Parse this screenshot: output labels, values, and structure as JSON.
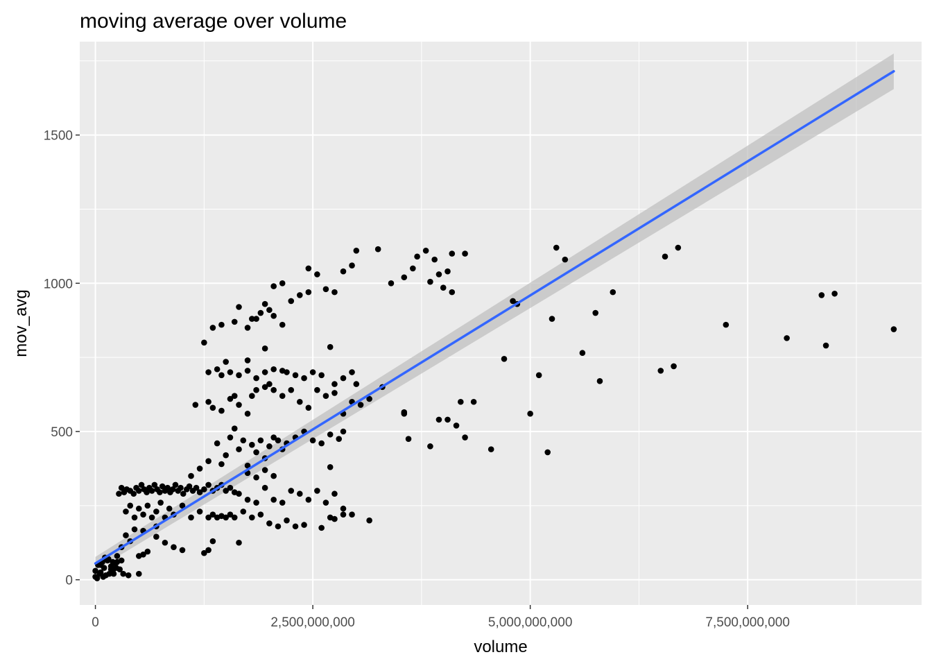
{
  "chart_data": {
    "type": "scatter",
    "title": "moving average over volume",
    "xlabel": "volume",
    "ylabel": "mov_avg",
    "xlim": [
      -180000000,
      9500000000
    ],
    "ylim": [
      -85,
      1815
    ],
    "x_ticks": [
      0,
      2500000000,
      5000000000,
      7500000000
    ],
    "x_tick_labels": [
      "0",
      "2,500,000,000",
      "5,000,000,000",
      "7,500,000,000"
    ],
    "y_ticks": [
      0,
      500,
      1000,
      1500
    ],
    "y_tick_labels": [
      "0",
      "500",
      "1000",
      "1500"
    ],
    "grid": true,
    "colors": {
      "panel": "#EBEBEB",
      "grid": "#FFFFFF",
      "points": "#000000",
      "fit_line": "#3366FF",
      "confidence_band": "#BEBEBE"
    },
    "points": [
      [
        0,
        10
      ],
      [
        0,
        30
      ],
      [
        50000000,
        20
      ],
      [
        100000000,
        40
      ],
      [
        20000000,
        5
      ],
      [
        80000000,
        60
      ],
      [
        60000000,
        25
      ],
      [
        120000000,
        15
      ],
      [
        30000000,
        50
      ],
      [
        150000000,
        70
      ],
      [
        180000000,
        45
      ],
      [
        200000000,
        30
      ],
      [
        230000000,
        55
      ],
      [
        250000000,
        80
      ],
      [
        280000000,
        35
      ],
      [
        300000000,
        65
      ],
      [
        160000000,
        20
      ],
      [
        110000000,
        75
      ],
      [
        90000000,
        10
      ],
      [
        210000000,
        20
      ],
      [
        270000000,
        290
      ],
      [
        300000000,
        310
      ],
      [
        330000000,
        295
      ],
      [
        360000000,
        305
      ],
      [
        400000000,
        300
      ],
      [
        440000000,
        290
      ],
      [
        470000000,
        310
      ],
      [
        500000000,
        300
      ],
      [
        530000000,
        320
      ],
      [
        560000000,
        305
      ],
      [
        590000000,
        295
      ],
      [
        620000000,
        310
      ],
      [
        650000000,
        300
      ],
      [
        680000000,
        320
      ],
      [
        710000000,
        305
      ],
      [
        740000000,
        295
      ],
      [
        770000000,
        315
      ],
      [
        800000000,
        300
      ],
      [
        830000000,
        310
      ],
      [
        860000000,
        295
      ],
      [
        890000000,
        305
      ],
      [
        920000000,
        320
      ],
      [
        950000000,
        300
      ],
      [
        980000000,
        310
      ],
      [
        1010000000,
        290
      ],
      [
        1050000000,
        305
      ],
      [
        1080000000,
        315
      ],
      [
        1120000000,
        300
      ],
      [
        1160000000,
        310
      ],
      [
        1200000000,
        295
      ],
      [
        1250000000,
        305
      ],
      [
        1300000000,
        320
      ],
      [
        1350000000,
        300
      ],
      [
        1400000000,
        310
      ],
      [
        1450000000,
        320
      ],
      [
        1500000000,
        300
      ],
      [
        1550000000,
        310
      ],
      [
        1600000000,
        295
      ],
      [
        350000000,
        230
      ],
      [
        400000000,
        250
      ],
      [
        450000000,
        210
      ],
      [
        500000000,
        240
      ],
      [
        550000000,
        220
      ],
      [
        600000000,
        250
      ],
      [
        650000000,
        210
      ],
      [
        700000000,
        230
      ],
      [
        750000000,
        260
      ],
      [
        800000000,
        210
      ],
      [
        850000000,
        240
      ],
      [
        900000000,
        220
      ],
      [
        1000000000,
        250
      ],
      [
        1100000000,
        210
      ],
      [
        1200000000,
        230
      ],
      [
        1300000000,
        210
      ],
      [
        1350000000,
        220
      ],
      [
        1400000000,
        210
      ],
      [
        1450000000,
        215
      ],
      [
        1500000000,
        210
      ],
      [
        1550000000,
        220
      ],
      [
        1600000000,
        210
      ],
      [
        1700000000,
        230
      ],
      [
        1800000000,
        210
      ],
      [
        1900000000,
        220
      ],
      [
        2000000000,
        190
      ],
      [
        2100000000,
        180
      ],
      [
        2200000000,
        200
      ],
      [
        2300000000,
        180
      ],
      [
        2400000000,
        185
      ],
      [
        2600000000,
        175
      ],
      [
        2700000000,
        210
      ],
      [
        2750000000,
        205
      ],
      [
        2850000000,
        220
      ],
      [
        3150000000,
        200
      ],
      [
        1650000000,
        125
      ],
      [
        1250000000,
        90
      ],
      [
        1300000000,
        100
      ],
      [
        1350000000,
        130
      ],
      [
        400000000,
        130
      ],
      [
        500000000,
        20
      ],
      [
        600000000,
        95
      ],
      [
        700000000,
        145
      ],
      [
        800000000,
        125
      ],
      [
        900000000,
        110
      ],
      [
        1000000000,
        100
      ],
      [
        500000000,
        80
      ],
      [
        550000000,
        85
      ],
      [
        200000000,
        60
      ],
      [
        300000000,
        110
      ],
      [
        350000000,
        150
      ],
      [
        450000000,
        170
      ],
      [
        550000000,
        165
      ],
      [
        700000000,
        180
      ],
      [
        1200000000,
        375
      ],
      [
        1300000000,
        400
      ],
      [
        1400000000,
        460
      ],
      [
        1450000000,
        390
      ],
      [
        1500000000,
        420
      ],
      [
        1550000000,
        480
      ],
      [
        1600000000,
        510
      ],
      [
        1650000000,
        440
      ],
      [
        1700000000,
        470
      ],
      [
        1750000000,
        385
      ],
      [
        1800000000,
        455
      ],
      [
        1850000000,
        430
      ],
      [
        1900000000,
        470
      ],
      [
        1950000000,
        410
      ],
      [
        2000000000,
        450
      ],
      [
        2050000000,
        480
      ],
      [
        2100000000,
        470
      ],
      [
        2150000000,
        440
      ],
      [
        2200000000,
        460
      ],
      [
        2300000000,
        480
      ],
      [
        2400000000,
        500
      ],
      [
        2500000000,
        470
      ],
      [
        2600000000,
        460
      ],
      [
        2700000000,
        490
      ],
      [
        2800000000,
        475
      ],
      [
        2850000000,
        500
      ],
      [
        2700000000,
        380
      ],
      [
        1750000000,
        360
      ],
      [
        1850000000,
        345
      ],
      [
        1950000000,
        370
      ],
      [
        2050000000,
        350
      ],
      [
        1100000000,
        350
      ],
      [
        1650000000,
        290
      ],
      [
        1750000000,
        270
      ],
      [
        1850000000,
        260
      ],
      [
        1950000000,
        310
      ],
      [
        2050000000,
        270
      ],
      [
        2150000000,
        260
      ],
      [
        2250000000,
        300
      ],
      [
        2350000000,
        290
      ],
      [
        2450000000,
        270
      ],
      [
        2550000000,
        300
      ],
      [
        2650000000,
        260
      ],
      [
        2750000000,
        290
      ],
      [
        2850000000,
        240
      ],
      [
        2950000000,
        220
      ],
      [
        1150000000,
        590
      ],
      [
        1300000000,
        600
      ],
      [
        1350000000,
        580
      ],
      [
        1450000000,
        570
      ],
      [
        1550000000,
        610
      ],
      [
        1600000000,
        620
      ],
      [
        1650000000,
        590
      ],
      [
        1750000000,
        560
      ],
      [
        1800000000,
        620
      ],
      [
        1850000000,
        640
      ],
      [
        1950000000,
        650
      ],
      [
        2000000000,
        660
      ],
      [
        2050000000,
        640
      ],
      [
        2150000000,
        620
      ],
      [
        2250000000,
        640
      ],
      [
        2350000000,
        600
      ],
      [
        2450000000,
        580
      ],
      [
        2550000000,
        640
      ],
      [
        2650000000,
        620
      ],
      [
        2750000000,
        630
      ],
      [
        2850000000,
        560
      ],
      [
        2950000000,
        600
      ],
      [
        3050000000,
        590
      ],
      [
        3150000000,
        610
      ],
      [
        1300000000,
        700
      ],
      [
        1400000000,
        710
      ],
      [
        1450000000,
        690
      ],
      [
        1550000000,
        700
      ],
      [
        1650000000,
        690
      ],
      [
        1750000000,
        705
      ],
      [
        1850000000,
        680
      ],
      [
        1950000000,
        700
      ],
      [
        2050000000,
        710
      ],
      [
        2150000000,
        705
      ],
      [
        2200000000,
        700
      ],
      [
        2300000000,
        690
      ],
      [
        2400000000,
        680
      ],
      [
        2500000000,
        700
      ],
      [
        2600000000,
        690
      ],
      [
        2750000000,
        660
      ],
      [
        2850000000,
        680
      ],
      [
        2950000000,
        700
      ],
      [
        3000000000,
        660
      ],
      [
        1500000000,
        735
      ],
      [
        1750000000,
        740
      ],
      [
        1950000000,
        780
      ],
      [
        2700000000,
        785
      ],
      [
        1250000000,
        800
      ],
      [
        1350000000,
        850
      ],
      [
        1450000000,
        860
      ],
      [
        1600000000,
        870
      ],
      [
        1750000000,
        850
      ],
      [
        1850000000,
        880
      ],
      [
        1900000000,
        900
      ],
      [
        1950000000,
        930
      ],
      [
        2000000000,
        910
      ],
      [
        2050000000,
        890
      ],
      [
        2150000000,
        860
      ],
      [
        2250000000,
        940
      ],
      [
        2350000000,
        960
      ],
      [
        2450000000,
        970
      ],
      [
        1650000000,
        920
      ],
      [
        1800000000,
        880
      ],
      [
        2050000000,
        990
      ],
      [
        2150000000,
        1000
      ],
      [
        2550000000,
        1030
      ],
      [
        2650000000,
        980
      ],
      [
        2750000000,
        970
      ],
      [
        2850000000,
        1040
      ],
      [
        2950000000,
        1060
      ],
      [
        3000000000,
        1110
      ],
      [
        3250000000,
        1115
      ],
      [
        3400000000,
        1000
      ],
      [
        3550000000,
        1020
      ],
      [
        3650000000,
        1050
      ],
      [
        3700000000,
        1090
      ],
      [
        3800000000,
        1110
      ],
      [
        3900000000,
        1080
      ],
      [
        3950000000,
        1030
      ],
      [
        4050000000,
        1040
      ],
      [
        4100000000,
        1100
      ],
      [
        4250000000,
        1100
      ],
      [
        2450000000,
        1050
      ],
      [
        3850000000,
        1005
      ],
      [
        4000000000,
        985
      ],
      [
        4100000000,
        970
      ],
      [
        3300000000,
        650
      ],
      [
        3550000000,
        565
      ],
      [
        3550000000,
        560
      ],
      [
        3600000000,
        475
      ],
      [
        3850000000,
        450
      ],
      [
        3950000000,
        540
      ],
      [
        4050000000,
        540
      ],
      [
        4150000000,
        520
      ],
      [
        4200000000,
        600
      ],
      [
        4250000000,
        480
      ],
      [
        4350000000,
        600
      ],
      [
        4550000000,
        440
      ],
      [
        4700000000,
        745
      ],
      [
        4800000000,
        940
      ],
      [
        4850000000,
        930
      ],
      [
        5000000000,
        560
      ],
      [
        5100000000,
        690
      ],
      [
        5200000000,
        430
      ],
      [
        5250000000,
        880
      ],
      [
        5300000000,
        1120
      ],
      [
        5400000000,
        1080
      ],
      [
        5600000000,
        765
      ],
      [
        5750000000,
        900
      ],
      [
        5800000000,
        670
      ],
      [
        5950000000,
        970
      ],
      [
        6500000000,
        705
      ],
      [
        6550000000,
        1090
      ],
      [
        6650000000,
        720
      ],
      [
        6700000000,
        1120
      ],
      [
        7250000000,
        860
      ],
      [
        7950000000,
        815
      ],
      [
        8350000000,
        960
      ],
      [
        8400000000,
        790
      ],
      [
        8500000000,
        965
      ],
      [
        9180000000,
        845
      ],
      [
        250000000,
        60
      ],
      [
        320000000,
        20
      ],
      [
        380000000,
        15
      ],
      [
        180000000,
        35
      ],
      [
        60000000,
        50
      ],
      [
        140000000,
        65
      ],
      [
        240000000,
        40
      ]
    ],
    "fit": {
      "method": "lm",
      "x": [
        0,
        9180000000
      ],
      "y": [
        55,
        1715
      ],
      "ci_halfwidth_start": 22,
      "ci_halfwidth_end": 60
    }
  }
}
